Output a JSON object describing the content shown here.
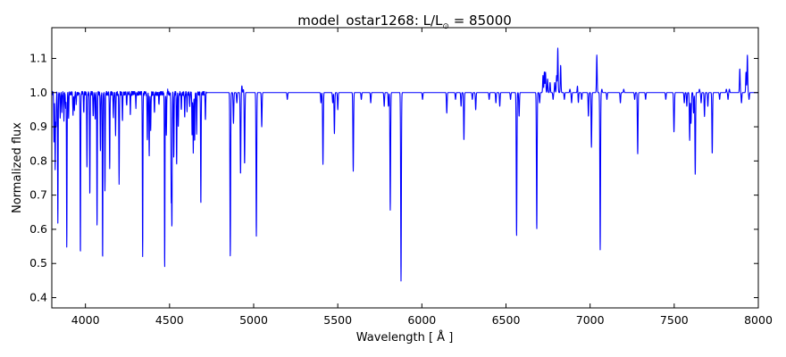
{
  "chart_data": {
    "type": "line",
    "title": "model_ostar1268: L/L",
    "title_symbol": "⊙",
    "title_value": " = 85000",
    "xlabel": "Wavelength [ Å ]",
    "ylabel": "Normalized flux",
    "xlim": [
      3800,
      8000
    ],
    "ylim": [
      0.37,
      1.19
    ],
    "xticks": [
      4000,
      4500,
      5000,
      5500,
      6000,
      6500,
      7000,
      7500,
      8000
    ],
    "yticks": [
      0.4,
      0.5,
      0.6,
      0.7,
      0.8,
      0.9,
      1.0,
      1.1
    ],
    "ytick_labels": [
      "0.4",
      "0.5",
      "0.6",
      "0.7",
      "0.8",
      "0.9",
      "1.0",
      "1.1"
    ],
    "grid": false,
    "continuum": 1.0,
    "series": [
      {
        "color": "#0000ff",
        "absorption_lines": [
          [
            3813,
            0.86
          ],
          [
            3820,
            0.78
          ],
          [
            3825,
            0.9
          ],
          [
            3836,
            0.62
          ],
          [
            3850,
            0.93
          ],
          [
            3860,
            0.95
          ],
          [
            3872,
            0.92
          ],
          [
            3882,
            0.96
          ],
          [
            3889,
            0.55
          ],
          [
            3900,
            0.93
          ],
          [
            3926,
            0.94
          ],
          [
            3934,
            0.95
          ],
          [
            3945,
            0.97
          ],
          [
            3970,
            0.53
          ],
          [
            3990,
            0.94
          ],
          [
            4009,
            0.78
          ],
          [
            4026,
            0.7
          ],
          [
            4046,
            0.93
          ],
          [
            4058,
            0.92
          ],
          [
            4069,
            0.61
          ],
          [
            4089,
            0.83
          ],
          [
            4102,
            0.51
          ],
          [
            4116,
            0.72
          ],
          [
            4144,
            0.78
          ],
          [
            4166,
            0.93
          ],
          [
            4179,
            0.88
          ],
          [
            4200,
            0.74
          ],
          [
            4220,
            0.92
          ],
          [
            4245,
            0.96
          ],
          [
            4267,
            0.94
          ],
          [
            4300,
            0.96
          ],
          [
            4340,
            0.52
          ],
          [
            4368,
            0.86
          ],
          [
            4379,
            0.82
          ],
          [
            4388,
            0.89
          ],
          [
            4410,
            0.94
          ],
          [
            4437,
            0.97
          ],
          [
            4471,
            0.49
          ],
          [
            4481,
            0.88
          ],
          [
            4510,
            0.7
          ],
          [
            4514,
            0.62
          ],
          [
            4525,
            0.8
          ],
          [
            4542,
            0.78
          ],
          [
            4552,
            0.9
          ],
          [
            4570,
            0.95
          ],
          [
            4590,
            0.93
          ],
          [
            4604,
            0.94
          ],
          [
            4620,
            0.96
          ],
          [
            4634,
            0.87
          ],
          [
            4641,
            0.82
          ],
          [
            4649,
            0.86
          ],
          [
            4661,
            0.88
          ],
          [
            4686,
            0.67
          ],
          [
            4713,
            0.92
          ],
          [
            4861,
            0.52
          ],
          [
            4880,
            0.91
          ],
          [
            4900,
            0.97
          ],
          [
            4922,
            0.76
          ],
          [
            4946,
            0.79
          ],
          [
            5016,
            0.58
          ],
          [
            5048,
            0.9
          ],
          [
            5200,
            0.98
          ],
          [
            5400,
            0.97
          ],
          [
            5412,
            0.79
          ],
          [
            5470,
            0.97
          ],
          [
            5480,
            0.88
          ],
          [
            5500,
            0.95
          ],
          [
            5592,
            0.77
          ],
          [
            5640,
            0.98
          ],
          [
            5696,
            0.97
          ],
          [
            5776,
            0.96
          ],
          [
            5801,
            0.96
          ],
          [
            5812,
            0.65
          ],
          [
            5876,
            0.44
          ],
          [
            6004,
            0.98
          ],
          [
            6148,
            0.94
          ],
          [
            6200,
            0.98
          ],
          [
            6233,
            0.96
          ],
          [
            6250,
            0.86
          ],
          [
            6300,
            0.98
          ],
          [
            6320,
            0.95
          ],
          [
            6400,
            0.98
          ],
          [
            6440,
            0.97
          ],
          [
            6463,
            0.96
          ],
          [
            6527,
            0.98
          ],
          [
            6563,
            0.58
          ],
          [
            6578,
            0.93
          ],
          [
            6683,
            0.6
          ],
          [
            6700,
            0.97
          ],
          [
            6780,
            0.98
          ],
          [
            6847,
            0.98
          ],
          [
            6890,
            0.97
          ],
          [
            6930,
            0.97
          ],
          [
            6950,
            0.98
          ],
          [
            6990,
            0.93
          ],
          [
            7008,
            0.84
          ],
          [
            7060,
            0.54
          ],
          [
            7100,
            0.98
          ],
          [
            7180,
            0.97
          ],
          [
            7265,
            0.98
          ],
          [
            7283,
            0.82
          ],
          [
            7330,
            0.98
          ],
          [
            7450,
            0.98
          ],
          [
            7498,
            0.92
          ],
          [
            7500,
            0.94
          ],
          [
            7560,
            0.97
          ],
          [
            7575,
            0.96
          ],
          [
            7592,
            0.86
          ],
          [
            7600,
            0.9
          ],
          [
            7615,
            0.94
          ],
          [
            7625,
            0.76
          ],
          [
            7660,
            0.97
          ],
          [
            7680,
            0.93
          ],
          [
            7700,
            0.96
          ],
          [
            7726,
            0.82
          ],
          [
            7770,
            0.98
          ],
          [
            7820,
            0.98
          ],
          [
            7900,
            0.97
          ],
          [
            7945,
            0.98
          ]
        ],
        "emission_lines": [
          [
            4490,
            1.01
          ],
          [
            4524,
            1.01
          ],
          [
            4540,
            1.01
          ],
          [
            4605,
            1.01
          ],
          [
            4634,
            1.01
          ],
          [
            4641,
            1.01
          ],
          [
            4658,
            1.01
          ],
          [
            4930,
            1.02
          ],
          [
            4940,
            1.01
          ],
          [
            5810,
            1.01
          ],
          [
            5875,
            1.01
          ],
          [
            6720,
            1.05
          ],
          [
            6728,
            1.06
          ],
          [
            6735,
            1.06
          ],
          [
            6747,
            1.04
          ],
          [
            6762,
            1.03
          ],
          [
            6790,
            1.03
          ],
          [
            6801,
            1.05
          ],
          [
            6808,
            1.13
          ],
          [
            6825,
            1.08
          ],
          [
            6880,
            1.01
          ],
          [
            6925,
            1.02
          ],
          [
            7040,
            1.11
          ],
          [
            7070,
            1.01
          ],
          [
            7200,
            1.01
          ],
          [
            7500,
            1.01
          ],
          [
            7600,
            1.01
          ],
          [
            7650,
            1.01
          ],
          [
            7810,
            1.01
          ],
          [
            7828,
            1.01
          ],
          [
            7890,
            1.07
          ],
          [
            7927,
            1.06
          ],
          [
            7935,
            1.11
          ]
        ]
      }
    ]
  }
}
